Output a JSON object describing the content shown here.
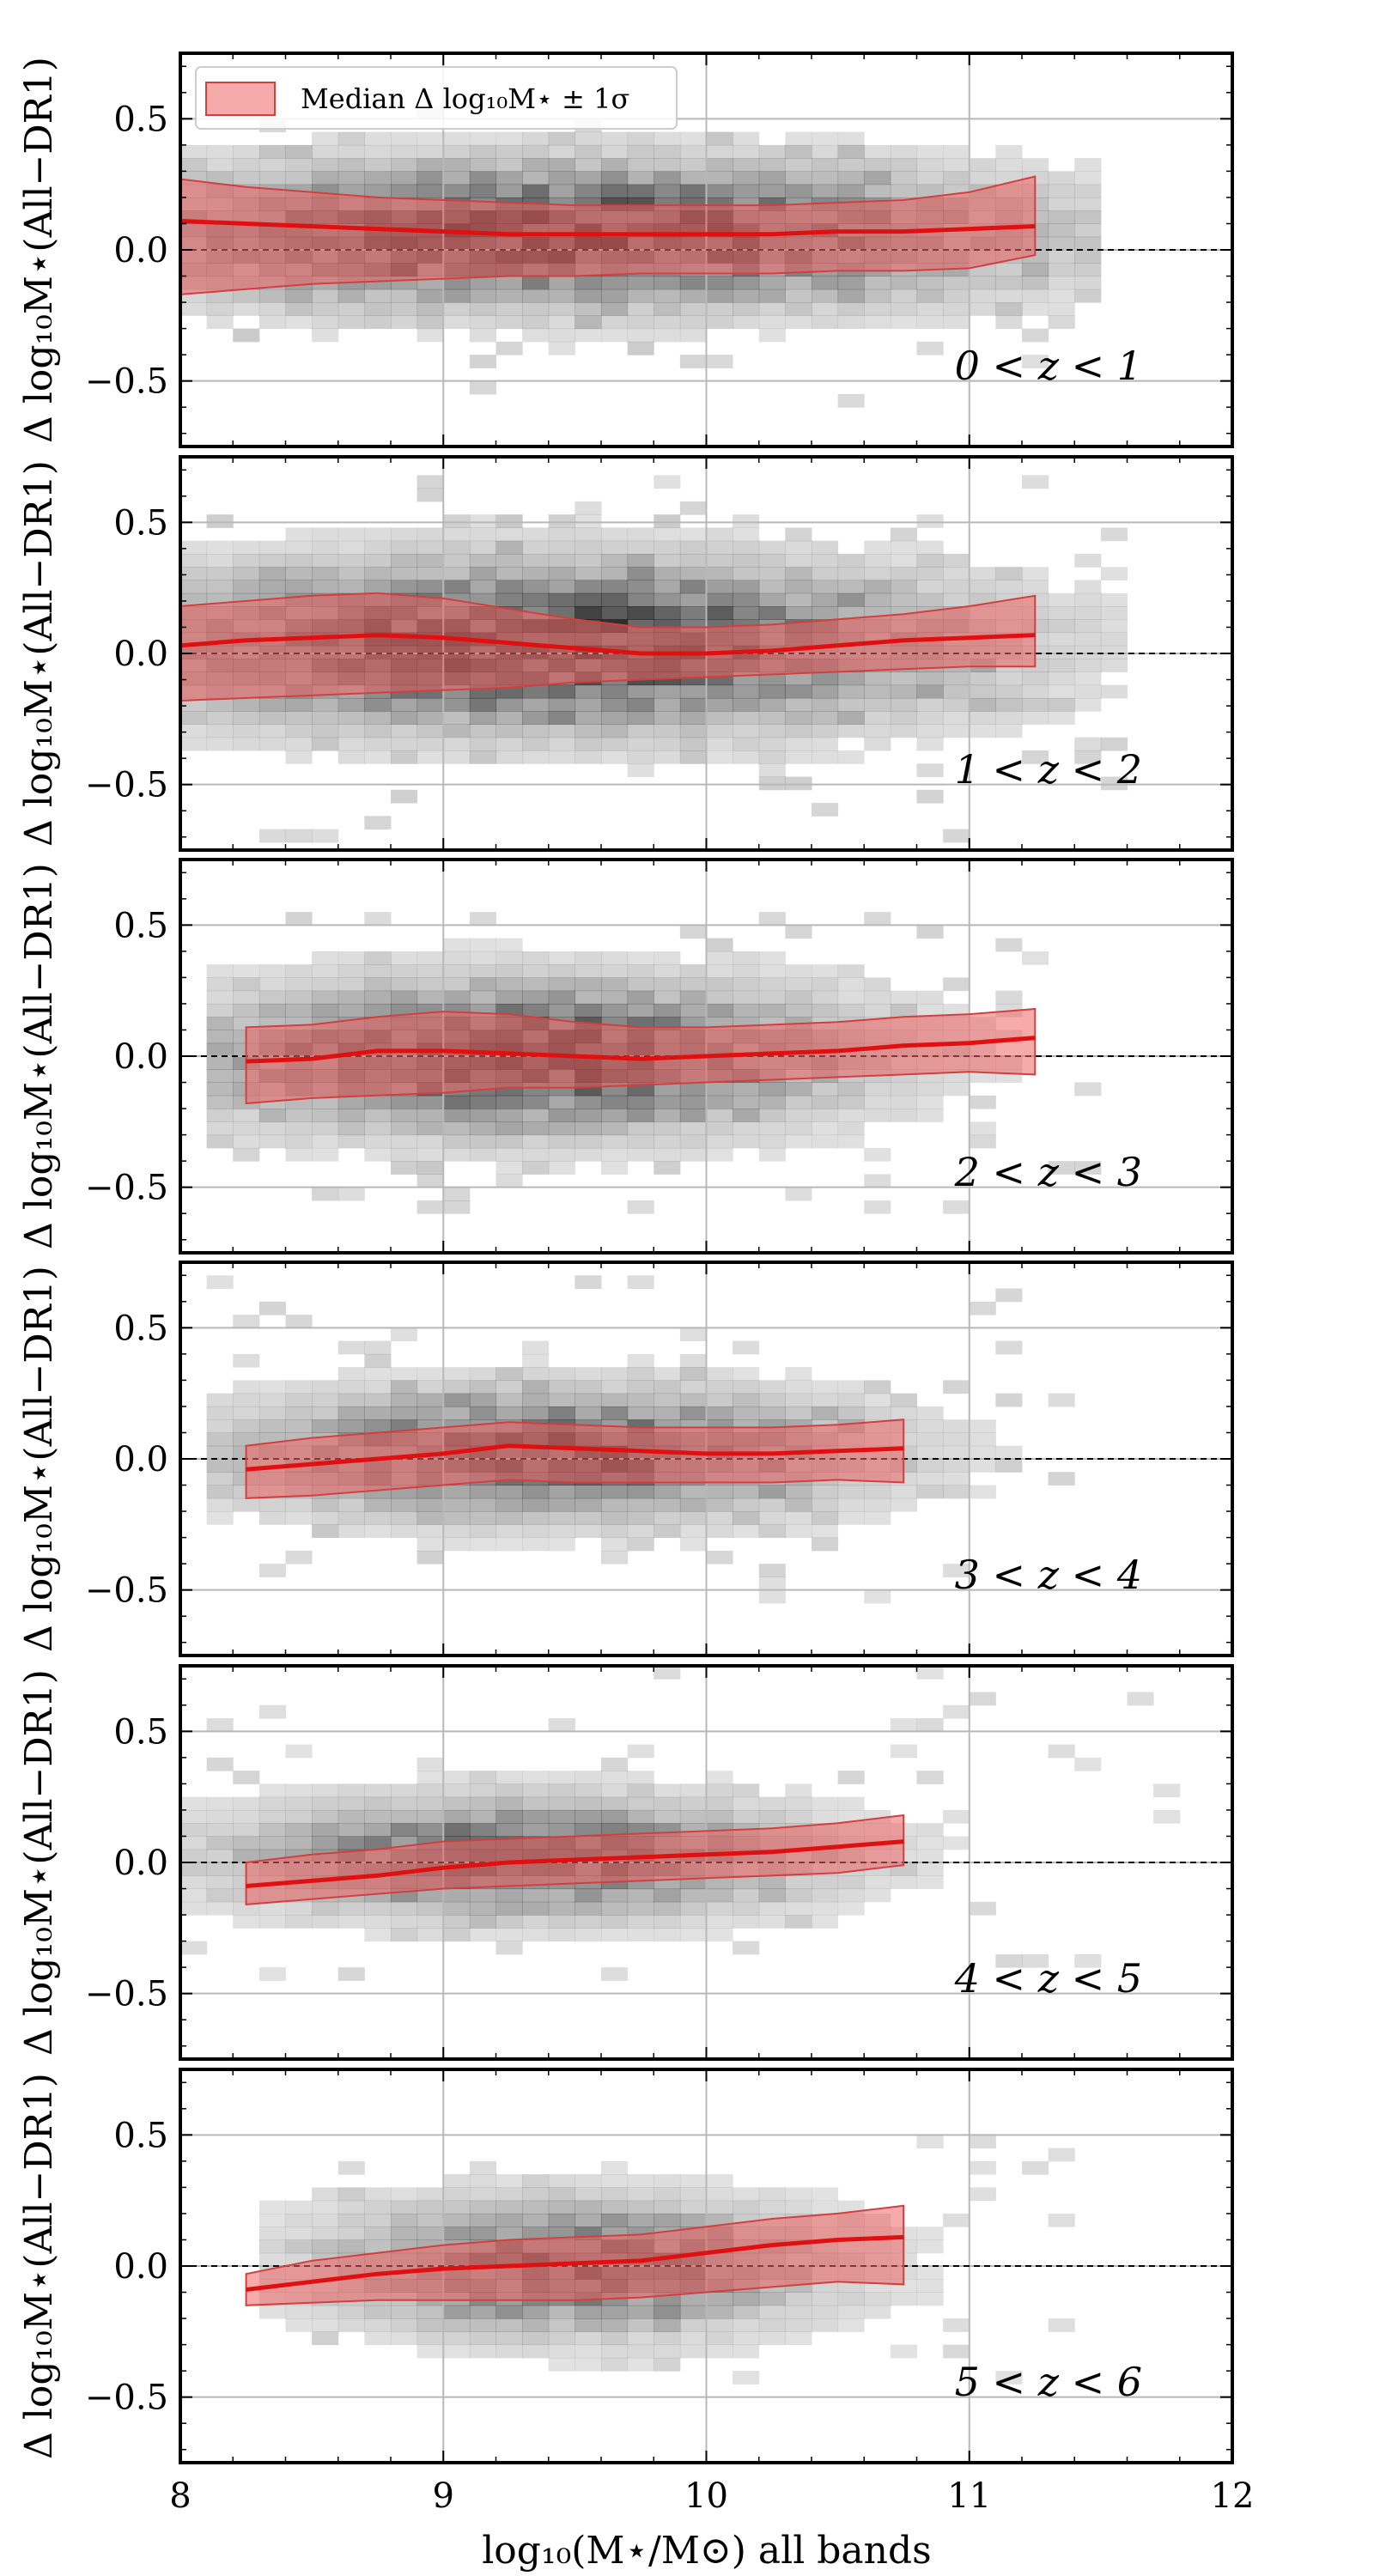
{
  "colors": {
    "median_line": "#e01010",
    "band_fill": "#f06464",
    "band_edge": "#d04040",
    "frame": "#000000",
    "grid": "#b8b8b8",
    "zero_line": "#000000",
    "hist": "#000000"
  },
  "chart_data": {
    "type": "heatmap",
    "legend": {
      "label": "Median Δ log₁₀M⋆ ± 1σ",
      "position": "top-left"
    },
    "xlabel": "log₁₀(M⋆/M⊙) all bands",
    "ylabel": "Δ log₁₀M⋆(All−DR1)",
    "xlim": [
      8,
      12
    ],
    "ylim": [
      -0.75,
      0.75
    ],
    "xticks": [
      8,
      9,
      10,
      11,
      12
    ],
    "yticks": [
      -0.5,
      0.0,
      0.5
    ],
    "ytick_labels": [
      "−0.5",
      "0.0",
      "0.5"
    ],
    "grid": true,
    "zero_line": 0.0,
    "panels": [
      {
        "label": "0 < z < 1",
        "x": [
          8.0,
          8.25,
          8.5,
          8.75,
          9.0,
          9.25,
          9.5,
          9.75,
          10.0,
          10.25,
          10.5,
          10.75,
          11.0,
          11.25
        ],
        "median": [
          0.11,
          0.1,
          0.09,
          0.08,
          0.07,
          0.06,
          0.06,
          0.06,
          0.06,
          0.06,
          0.07,
          0.07,
          0.08,
          0.09
        ],
        "lower": [
          -0.17,
          -0.15,
          -0.13,
          -0.12,
          -0.11,
          -0.1,
          -0.1,
          -0.09,
          -0.09,
          -0.09,
          -0.08,
          -0.08,
          -0.07,
          -0.02
        ],
        "upper": [
          0.27,
          0.24,
          0.22,
          0.2,
          0.19,
          0.18,
          0.17,
          0.17,
          0.17,
          0.17,
          0.18,
          0.19,
          0.22,
          0.28
        ],
        "hist": {
          "xmin": 8.0,
          "xmax": 11.5,
          "ymin": -0.6,
          "ymax": 0.55,
          "width": 1.5,
          "peak_x": 9.5,
          "peak_y": 0.06,
          "sx": 1.1,
          "sy": 0.17,
          "floor": 0.05
        }
      },
      {
        "label": "1 < z < 2",
        "x": [
          8.0,
          8.25,
          8.5,
          8.75,
          9.0,
          9.25,
          9.5,
          9.75,
          10.0,
          10.25,
          10.5,
          10.75,
          11.0,
          11.25
        ],
        "median": [
          0.03,
          0.05,
          0.06,
          0.07,
          0.06,
          0.04,
          0.02,
          0.0,
          0.0,
          0.01,
          0.03,
          0.05,
          0.06,
          0.07
        ],
        "lower": [
          -0.18,
          -0.17,
          -0.16,
          -0.15,
          -0.14,
          -0.13,
          -0.11,
          -0.1,
          -0.09,
          -0.08,
          -0.07,
          -0.06,
          -0.05,
          -0.05
        ],
        "upper": [
          0.18,
          0.2,
          0.22,
          0.23,
          0.21,
          0.17,
          0.13,
          0.1,
          0.1,
          0.11,
          0.13,
          0.15,
          0.18,
          0.22
        ],
        "hist": {
          "xmin": 8.0,
          "xmax": 11.6,
          "ymin": -0.72,
          "ymax": 0.68,
          "width": 1.5,
          "peak_x": 9.4,
          "peak_y": 0.03,
          "sx": 1.0,
          "sy": 0.2,
          "floor": 0.05
        }
      },
      {
        "label": "2 < z < 3",
        "x": [
          8.25,
          8.5,
          8.75,
          9.0,
          9.25,
          9.5,
          9.75,
          10.0,
          10.25,
          10.5,
          10.75,
          11.0,
          11.25
        ],
        "median": [
          -0.02,
          -0.01,
          0.02,
          0.02,
          0.01,
          0.0,
          -0.01,
          0.0,
          0.01,
          0.02,
          0.04,
          0.05,
          0.07
        ],
        "lower": [
          -0.18,
          -0.16,
          -0.15,
          -0.14,
          -0.12,
          -0.12,
          -0.11,
          -0.1,
          -0.09,
          -0.08,
          -0.07,
          -0.06,
          -0.07
        ],
        "upper": [
          0.11,
          0.12,
          0.15,
          0.17,
          0.16,
          0.13,
          0.11,
          0.11,
          0.12,
          0.13,
          0.15,
          0.16,
          0.18
        ],
        "hist": {
          "xmin": 8.1,
          "xmax": 11.5,
          "ymin": -0.6,
          "ymax": 0.55,
          "width": 1.4,
          "peak_x": 9.3,
          "peak_y": 0.0,
          "sx": 0.8,
          "sy": 0.18,
          "floor": 0.05
        }
      },
      {
        "label": "3 < z < 4",
        "x": [
          8.25,
          8.5,
          8.75,
          9.0,
          9.25,
          9.5,
          9.75,
          10.0,
          10.25,
          10.5,
          10.75
        ],
        "median": [
          -0.04,
          -0.02,
          0.0,
          0.02,
          0.05,
          0.04,
          0.03,
          0.02,
          0.02,
          0.03,
          0.04
        ],
        "lower": [
          -0.15,
          -0.14,
          -0.12,
          -0.1,
          -0.08,
          -0.09,
          -0.09,
          -0.09,
          -0.09,
          -0.08,
          -0.09
        ],
        "upper": [
          0.05,
          0.08,
          0.1,
          0.12,
          0.14,
          0.13,
          0.12,
          0.12,
          0.12,
          0.13,
          0.15
        ],
        "hist": {
          "xmin": 8.1,
          "xmax": 11.5,
          "ymin": -0.55,
          "ymax": 0.7,
          "width": 1.35,
          "peak_x": 9.4,
          "peak_y": 0.02,
          "sx": 0.75,
          "sy": 0.15,
          "floor": 0.05
        }
      },
      {
        "label": "4 < z < 5",
        "x": [
          8.25,
          8.5,
          8.75,
          9.0,
          9.25,
          9.5,
          9.75,
          10.0,
          10.25,
          10.5,
          10.75
        ],
        "median": [
          -0.09,
          -0.07,
          -0.05,
          -0.02,
          0.0,
          0.01,
          0.02,
          0.03,
          0.04,
          0.06,
          0.08
        ],
        "lower": [
          -0.16,
          -0.14,
          -0.12,
          -0.1,
          -0.09,
          -0.08,
          -0.07,
          -0.06,
          -0.05,
          -0.04,
          -0.01
        ],
        "upper": [
          0.0,
          0.03,
          0.05,
          0.08,
          0.09,
          0.1,
          0.11,
          0.12,
          0.13,
          0.15,
          0.18
        ],
        "hist": {
          "xmin": 8.0,
          "xmax": 11.8,
          "ymin": -0.45,
          "ymax": 0.72,
          "width": 1.2,
          "peak_x": 9.3,
          "peak_y": 0.02,
          "sx": 0.7,
          "sy": 0.14,
          "floor": 0.05
        }
      },
      {
        "label": "5 < z < 6",
        "x": [
          8.25,
          8.5,
          8.75,
          9.0,
          9.25,
          9.5,
          9.75,
          10.0,
          10.25,
          10.5,
          10.75
        ],
        "median": [
          -0.09,
          -0.06,
          -0.03,
          -0.01,
          0.0,
          0.01,
          0.02,
          0.05,
          0.08,
          0.1,
          0.11
        ],
        "lower": [
          -0.15,
          -0.14,
          -0.13,
          -0.13,
          -0.13,
          -0.13,
          -0.12,
          -0.1,
          -0.08,
          -0.06,
          -0.07
        ],
        "upper": [
          -0.03,
          0.02,
          0.05,
          0.08,
          0.1,
          0.11,
          0.12,
          0.15,
          0.18,
          0.2,
          0.23
        ],
        "hist": {
          "xmin": 8.3,
          "xmax": 11.4,
          "ymin": -0.45,
          "ymax": 0.48,
          "width": 1.15,
          "peak_x": 9.5,
          "peak_y": 0.0,
          "sx": 0.6,
          "sy": 0.16,
          "floor": 0.05
        }
      }
    ]
  }
}
